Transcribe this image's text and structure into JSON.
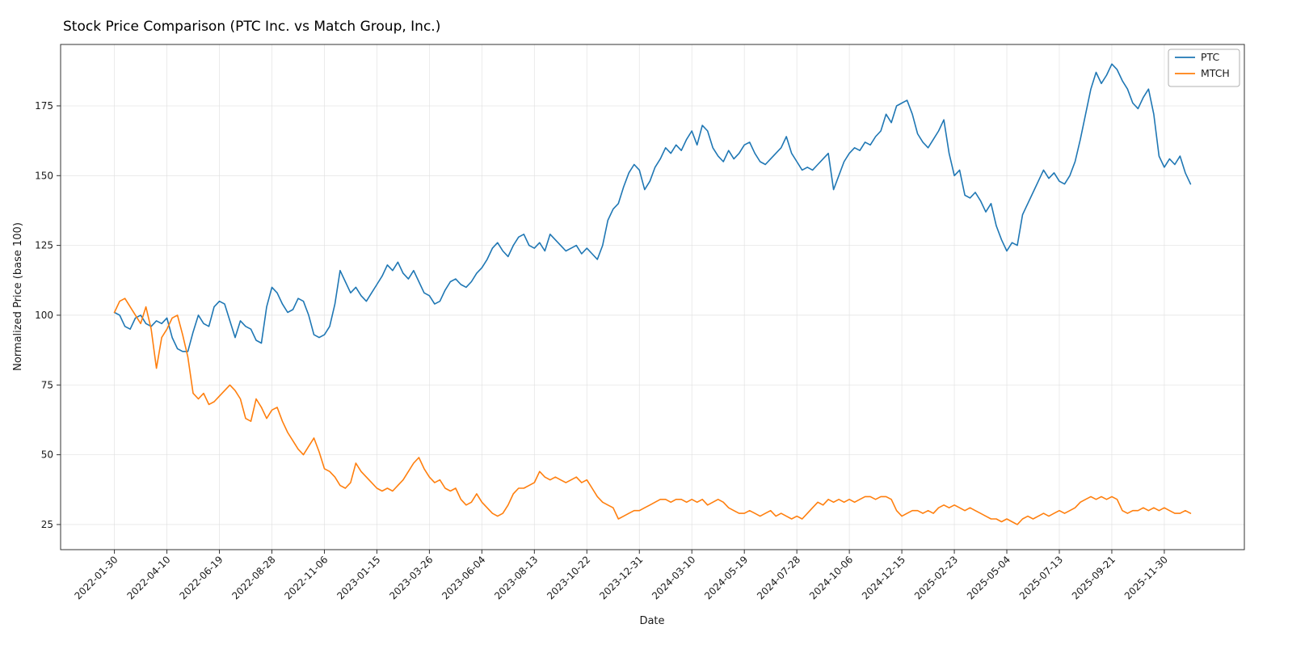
{
  "figure": {
    "title": "Stock Price Comparison (PTC Inc. vs Match Group, Inc.)",
    "xlabel": "Date",
    "ylabel": "Normalized Price (base 100)"
  },
  "chart_data": {
    "type": "line",
    "title": "Stock Price Comparison (PTC Inc. vs Match Group, Inc.)",
    "xlabel": "Date",
    "ylabel": "Normalized Price (base 100)",
    "x_interval": "weekly samples, tick every 10 weeks",
    "x_tick_indices": [
      0,
      10,
      20,
      30,
      40,
      50,
      60,
      70,
      80,
      90,
      100,
      110,
      120,
      130,
      140,
      150,
      160,
      170,
      180,
      190,
      200
    ],
    "x_tick_labels": [
      "2022-01-30",
      "2022-04-10",
      "2022-06-19",
      "2022-08-28",
      "2022-11-06",
      "2023-01-15",
      "2023-03-26",
      "2023-06-04",
      "2023-08-13",
      "2023-10-22",
      "2023-12-31",
      "2024-03-10",
      "2024-05-19",
      "2024-07-28",
      "2024-10-06",
      "2024-12-15",
      "2025-02-23",
      "2025-05-04",
      "2025-07-13",
      "2025-09-21",
      "2025-11-30"
    ],
    "y_ticks": [
      25,
      50,
      75,
      100,
      125,
      150,
      175
    ],
    "ylim": [
      16,
      197
    ],
    "grid": true,
    "legend": {
      "position": "upper right",
      "entries": [
        "PTC",
        "MTCH"
      ]
    },
    "series": [
      {
        "name": "PTC",
        "color": "#1f77b4",
        "values": [
          101,
          100,
          96,
          95,
          99,
          100,
          97,
          96,
          98,
          97,
          99,
          92,
          88,
          87,
          87,
          94,
          100,
          97,
          96,
          103,
          105,
          104,
          98,
          92,
          98,
          96,
          95,
          91,
          90,
          103,
          110,
          108,
          104,
          101,
          102,
          106,
          105,
          100,
          93,
          92,
          93,
          96,
          104,
          116,
          112,
          108,
          110,
          107,
          105,
          108,
          111,
          114,
          118,
          116,
          119,
          115,
          113,
          116,
          112,
          108,
          107,
          104,
          105,
          109,
          112,
          113,
          111,
          110,
          112,
          115,
          117,
          120,
          124,
          126,
          123,
          121,
          125,
          128,
          129,
          125,
          124,
          126,
          123,
          129,
          127,
          125,
          123,
          124,
          125,
          122,
          124,
          122,
          120,
          125,
          134,
          138,
          140,
          146,
          151,
          154,
          152,
          145,
          148,
          153,
          156,
          160,
          158,
          161,
          159,
          163,
          166,
          161,
          168,
          166,
          160,
          157,
          155,
          159,
          156,
          158,
          161,
          162,
          158,
          155,
          154,
          156,
          158,
          160,
          164,
          158,
          155,
          152,
          153,
          152,
          154,
          156,
          158,
          145,
          150,
          155,
          158,
          160,
          159,
          162,
          161,
          164,
          166,
          172,
          169,
          175,
          176,
          177,
          172,
          165,
          162,
          160,
          163,
          166,
          170,
          158,
          150,
          152,
          143,
          142,
          144,
          141,
          137,
          140,
          132,
          127,
          123,
          126,
          125,
          136,
          140,
          144,
          148,
          152,
          149,
          151,
          148,
          147,
          150,
          155,
          163,
          172,
          181,
          187,
          183,
          186,
          190,
          188,
          184,
          181,
          176,
          174,
          178,
          181,
          172,
          157,
          153,
          156,
          154,
          157,
          151,
          147
        ]
      },
      {
        "name": "MTCH",
        "color": "#ff7f0e",
        "values": [
          101,
          105,
          106,
          103,
          100,
          97,
          103,
          95,
          81,
          92,
          95,
          99,
          100,
          93,
          85,
          72,
          70,
          72,
          68,
          69,
          71,
          73,
          75,
          73,
          70,
          63,
          62,
          70,
          67,
          63,
          66,
          67,
          62,
          58,
          55,
          52,
          50,
          53,
          56,
          51,
          45,
          44,
          42,
          39,
          38,
          40,
          47,
          44,
          42,
          40,
          38,
          37,
          38,
          37,
          39,
          41,
          44,
          47,
          49,
          45,
          42,
          40,
          41,
          38,
          37,
          38,
          34,
          32,
          33,
          36,
          33,
          31,
          29,
          28,
          29,
          32,
          36,
          38,
          38,
          39,
          40,
          44,
          42,
          41,
          42,
          41,
          40,
          41,
          42,
          40,
          41,
          38,
          35,
          33,
          32,
          31,
          27,
          28,
          29,
          30,
          30,
          31,
          32,
          33,
          34,
          34,
          33,
          34,
          34,
          33,
          34,
          33,
          34,
          32,
          33,
          34,
          33,
          31,
          30,
          29,
          29,
          30,
          29,
          28,
          29,
          30,
          28,
          29,
          28,
          27,
          28,
          27,
          29,
          31,
          33,
          32,
          34,
          33,
          34,
          33,
          34,
          33,
          34,
          35,
          35,
          34,
          35,
          35,
          34,
          30,
          28,
          29,
          30,
          30,
          29,
          30,
          29,
          31,
          32,
          31,
          32,
          31,
          30,
          31,
          30,
          29,
          28,
          27,
          27,
          26,
          27,
          26,
          25,
          27,
          28,
          27,
          28,
          29,
          28,
          29,
          30,
          29,
          30,
          31,
          33,
          34,
          35,
          34,
          35,
          34,
          35,
          34,
          30,
          29,
          30,
          30,
          31,
          30,
          31,
          30,
          31,
          30,
          29,
          29,
          30,
          29
        ]
      }
    ]
  }
}
